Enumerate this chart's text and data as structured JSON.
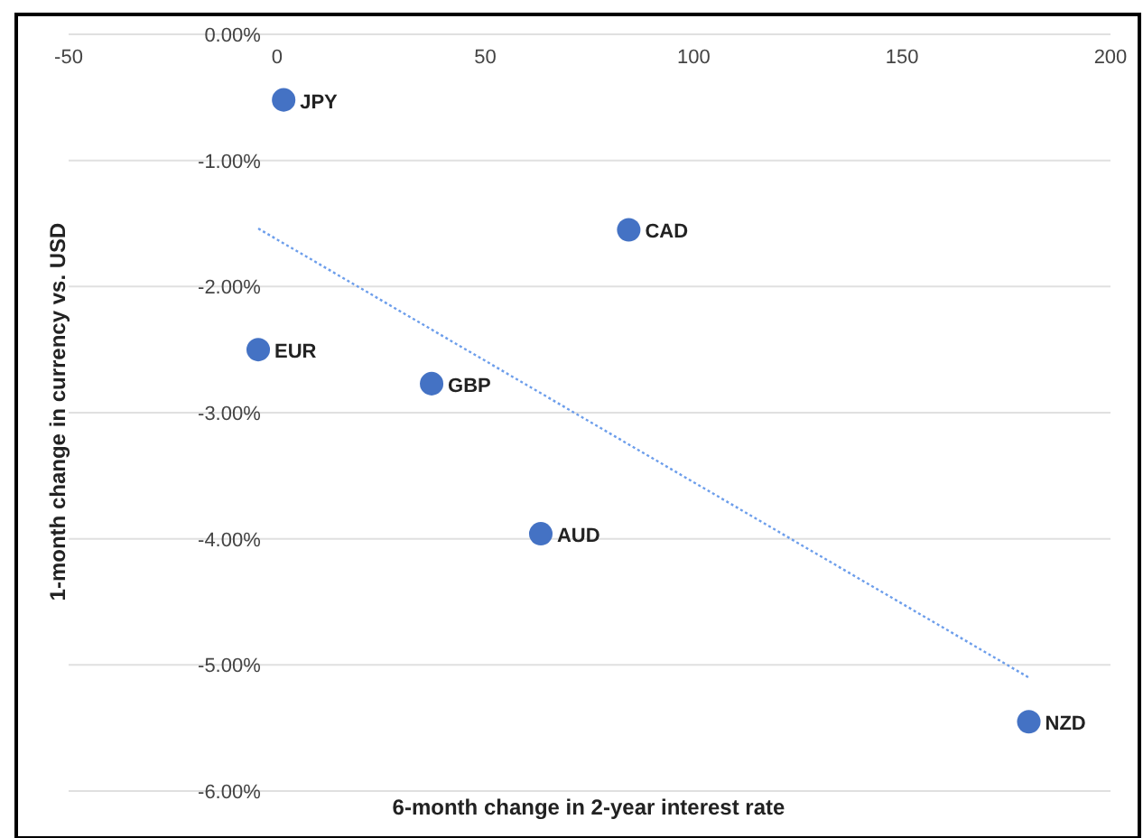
{
  "chart_data": {
    "type": "scatter",
    "xlabel": "6-month change in 2-year interest rate",
    "ylabel": "1-month change in currency vs. USD",
    "xlim": [
      -50,
      200
    ],
    "xticks": [
      -50,
      0,
      50,
      100,
      150,
      200
    ],
    "ylim": [
      -6,
      0
    ],
    "yticks": [
      {
        "value": 0,
        "label": "0.00%"
      },
      {
        "value": -1,
        "label": "-1.00%"
      },
      {
        "value": -2,
        "label": "-2.00%"
      },
      {
        "value": -3,
        "label": "-3.00%"
      },
      {
        "value": -4,
        "label": "-4.00%"
      },
      {
        "value": -5,
        "label": "-5.00%"
      },
      {
        "value": -6,
        "label": "-6.00%"
      }
    ],
    "grid": "y",
    "series": [
      {
        "color": "#4472c4",
        "marker": "circle",
        "x": [
          1.6,
          84.4,
          -4.5,
          37.1,
          63.3,
          180.4
        ],
        "values": [
          -0.52,
          -1.55,
          -2.5,
          -2.77,
          -3.96,
          -5.45
        ]
      },
      {
        "type": "line",
        "color": "#6d9eeb",
        "line_style": "dotted",
        "marker": "none",
        "x": [
          -4.5,
          180.4
        ],
        "values": [
          -1.54,
          -5.1
        ]
      }
    ],
    "annotations": [
      {
        "text": "JPY",
        "x": 1.6,
        "y": -0.52
      },
      {
        "text": "CAD",
        "x": 84.4,
        "y": -1.55
      },
      {
        "text": "EUR",
        "x": -4.5,
        "y": -2.5
      },
      {
        "text": "GBP",
        "x": 37.1,
        "y": -2.77
      },
      {
        "text": "AUD",
        "x": 63.3,
        "y": -3.96
      },
      {
        "text": "NZD",
        "x": 180.4,
        "y": -5.45
      }
    ]
  }
}
